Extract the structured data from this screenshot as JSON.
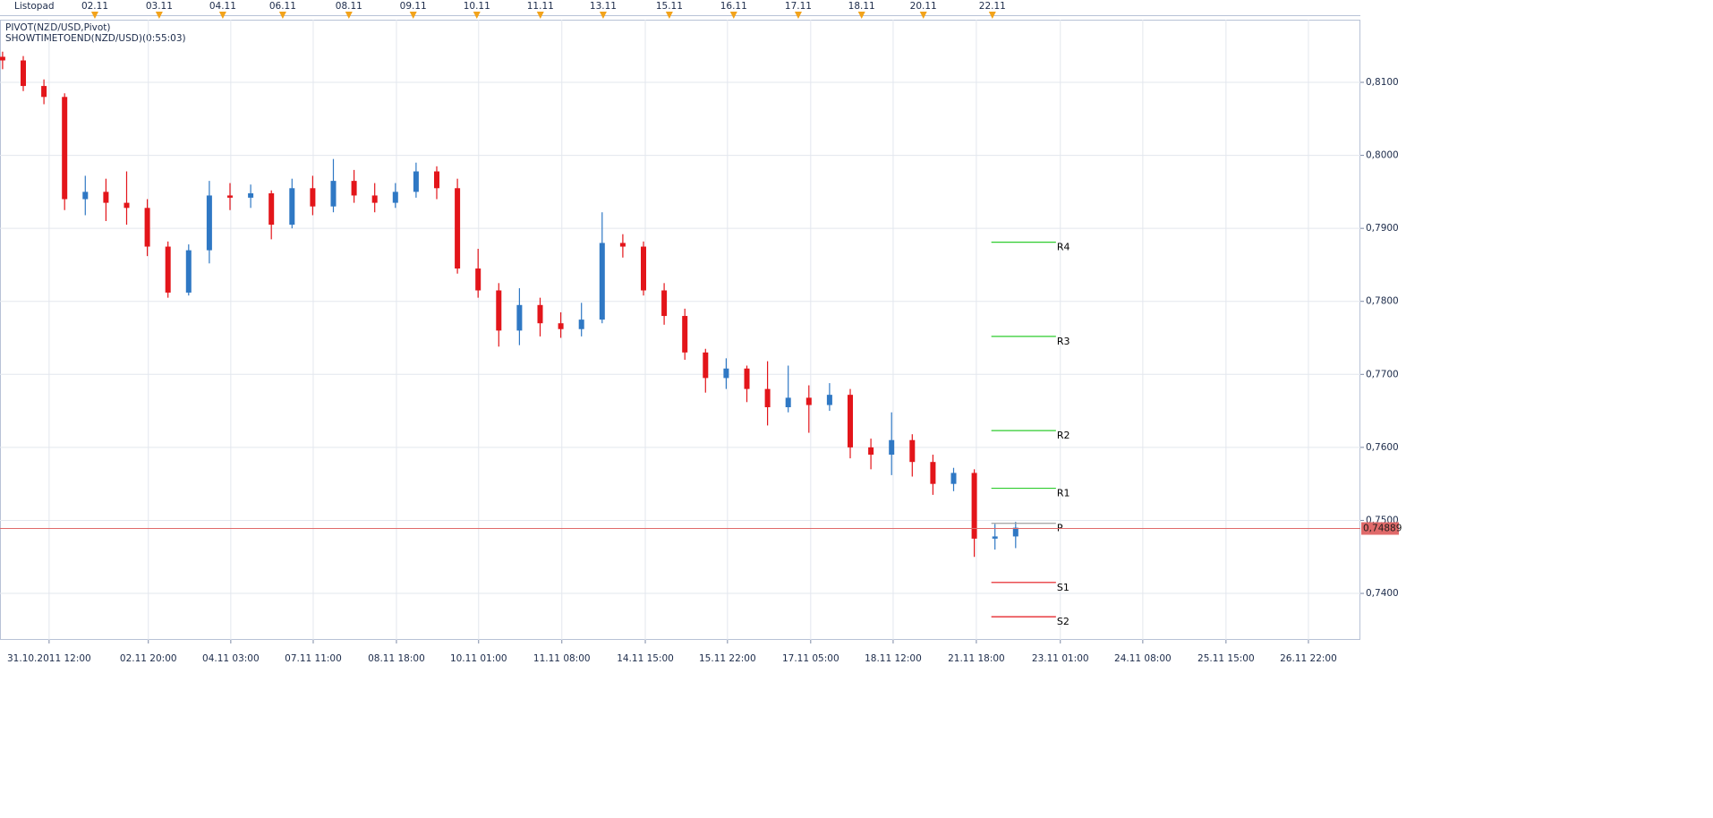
{
  "chart_data": {
    "type": "candlestick",
    "indicators": [
      "PIVOT(NZD/USD,Pivot)",
      "SHOWTIMETOEND(NZD/USD)(0:55:03)"
    ],
    "top_axis_title": "Listopad",
    "up_color": "#2f78c4",
    "down_color": "#e3151a",
    "grid": true,
    "x": [
      -18,
      -10,
      -2,
      6,
      14,
      22,
      30,
      38,
      46,
      54,
      62,
      70,
      78,
      86,
      94,
      102,
      110,
      118,
      126,
      134,
      142,
      150,
      158,
      166,
      174,
      182,
      190,
      198,
      206,
      214,
      222,
      230,
      238,
      246,
      254,
      262,
      270,
      278,
      286,
      294,
      302,
      310,
      318,
      326,
      334,
      342,
      350,
      358,
      366,
      374
    ],
    "open": [
      0.8135,
      0.813,
      0.8095,
      0.808,
      0.794,
      0.795,
      0.7935,
      0.7928,
      0.7875,
      0.7812,
      0.787,
      0.7945,
      0.7942,
      0.7948,
      0.7905,
      0.7955,
      0.793,
      0.7965,
      0.7945,
      0.7935,
      0.795,
      0.7978,
      0.7955,
      0.7845,
      0.7815,
      0.776,
      0.7795,
      0.777,
      0.7762,
      0.7775,
      0.788,
      0.7875,
      0.7815,
      0.778,
      0.773,
      0.7695,
      0.7708,
      0.768,
      0.7655,
      0.7668,
      0.7658,
      0.7672,
      0.76,
      0.759,
      0.761,
      0.758,
      0.755,
      0.7565,
      0.7475,
      0.7478
    ],
    "high": [
      0.8142,
      0.8136,
      0.8104,
      0.8085,
      0.7972,
      0.7968,
      0.7978,
      0.794,
      0.7882,
      0.7878,
      0.7965,
      0.7962,
      0.796,
      0.7952,
      0.7968,
      0.7972,
      0.7995,
      0.798,
      0.7962,
      0.7962,
      0.799,
      0.7985,
      0.7968,
      0.7872,
      0.7825,
      0.7818,
      0.7805,
      0.7785,
      0.7798,
      0.7922,
      0.7892,
      0.7882,
      0.7825,
      0.779,
      0.7735,
      0.7722,
      0.7712,
      0.7718,
      0.7712,
      0.7685,
      0.7688,
      0.768,
      0.7612,
      0.7648,
      0.7618,
      0.759,
      0.7572,
      0.757,
      0.7495,
      0.7498
    ],
    "low": [
      0.8118,
      0.8088,
      0.807,
      0.7925,
      0.7918,
      0.791,
      0.7905,
      0.7862,
      0.7805,
      0.7808,
      0.7852,
      0.7925,
      0.7928,
      0.7885,
      0.79,
      0.7918,
      0.7922,
      0.7935,
      0.7922,
      0.7928,
      0.7942,
      0.794,
      0.7838,
      0.7805,
      0.7738,
      0.774,
      0.7752,
      0.775,
      0.7752,
      0.777,
      0.786,
      0.7808,
      0.7768,
      0.772,
      0.7675,
      0.768,
      0.7662,
      0.763,
      0.7648,
      0.762,
      0.765,
      0.7585,
      0.757,
      0.7562,
      0.756,
      0.7535,
      0.754,
      0.745,
      0.746,
      0.7462
    ],
    "close": [
      0.813,
      0.8095,
      0.808,
      0.794,
      0.795,
      0.7935,
      0.7928,
      0.7875,
      0.7812,
      0.787,
      0.7945,
      0.7942,
      0.7948,
      0.7905,
      0.7955,
      0.793,
      0.7965,
      0.7945,
      0.7935,
      0.795,
      0.7978,
      0.7955,
      0.7845,
      0.7815,
      0.776,
      0.7795,
      0.777,
      0.7762,
      0.7775,
      0.788,
      0.7875,
      0.7815,
      0.778,
      0.773,
      0.7695,
      0.7708,
      0.768,
      0.7655,
      0.7668,
      0.7658,
      0.7672,
      0.76,
      0.759,
      0.761,
      0.758,
      0.755,
      0.7565,
      0.7475,
      0.7478,
      0.749
    ],
    "xlim": [
      -19,
      507.4
    ],
    "xticks": [
      {
        "value": 0,
        "label": "31.10.2011 12:00"
      },
      {
        "value": 38.4,
        "label": "02.11 20:00"
      },
      {
        "value": 70.3,
        "label": "04.11 03:00"
      },
      {
        "value": 102.2,
        "label": "07.11 11:00"
      },
      {
        "value": 134.4,
        "label": "08.11 18:00"
      },
      {
        "value": 166.2,
        "label": "10.11 01:00"
      },
      {
        "value": 198.4,
        "label": "11.11 08:00"
      },
      {
        "value": 230.7,
        "label": "14.11 15:00"
      },
      {
        "value": 262.5,
        "label": "15.11 22:00"
      },
      {
        "value": 294.7,
        "label": "17.11 05:00"
      },
      {
        "value": 326.6,
        "label": "18.11 12:00"
      },
      {
        "value": 358.8,
        "label": "21.11 18:00"
      },
      {
        "value": 391.3,
        "label": "23.11 01:00"
      },
      {
        "value": 423.2,
        "label": "24.11 08:00"
      },
      {
        "value": 455.4,
        "label": "25.11 15:00"
      },
      {
        "value": 487.3,
        "label": "26.11 22:00"
      }
    ],
    "top_xticks": [
      {
        "value": 17.7,
        "label": "02.11"
      },
      {
        "value": 42.6,
        "label": "03.11"
      },
      {
        "value": 67.2,
        "label": "04.11"
      },
      {
        "value": 90.4,
        "label": "06.11"
      },
      {
        "value": 116.0,
        "label": "08.11"
      },
      {
        "value": 140.9,
        "label": "09.11"
      },
      {
        "value": 165.5,
        "label": "10.11"
      },
      {
        "value": 190.1,
        "label": "11.11"
      },
      {
        "value": 214.4,
        "label": "13.11"
      },
      {
        "value": 240.0,
        "label": "15.11"
      },
      {
        "value": 264.9,
        "label": "16.11"
      },
      {
        "value": 289.9,
        "label": "17.11"
      },
      {
        "value": 314.4,
        "label": "18.11"
      },
      {
        "value": 338.3,
        "label": "20.11"
      },
      {
        "value": 365.0,
        "label": "22.11"
      }
    ],
    "ylim": [
      0.73363,
      0.81858
    ],
    "yticks": [
      {
        "value": 0.74,
        "label": "0,7400"
      },
      {
        "value": 0.75,
        "label": "0,7500"
      },
      {
        "value": 0.76,
        "label": "0,7600"
      },
      {
        "value": 0.77,
        "label": "0,7700"
      },
      {
        "value": 0.78,
        "label": "0,7800"
      },
      {
        "value": 0.79,
        "label": "0,7900"
      },
      {
        "value": 0.8,
        "label": "0,8000"
      },
      {
        "value": 0.81,
        "label": "0,8100"
      }
    ],
    "pivot_span": [
      364.6,
      389.6
    ],
    "pivots": [
      {
        "name": "R4",
        "value": 0.7881,
        "color": "#2ecc2e"
      },
      {
        "name": "R3",
        "value": 0.7752,
        "color": "#2ecc2e"
      },
      {
        "name": "R2",
        "value": 0.7623,
        "color": "#2ecc2e"
      },
      {
        "name": "R1",
        "value": 0.7544,
        "color": "#2ecc2e"
      },
      {
        "name": "P",
        "value": 0.7496,
        "color": "#a0a0a0"
      },
      {
        "name": "S1",
        "value": 0.7415,
        "color": "#e3151a"
      },
      {
        "name": "S2",
        "value": 0.7368,
        "color": "#e3151a"
      }
    ],
    "last_price": {
      "value": 0.74889,
      "label": "0,74889",
      "color": "#e06a6a"
    }
  }
}
